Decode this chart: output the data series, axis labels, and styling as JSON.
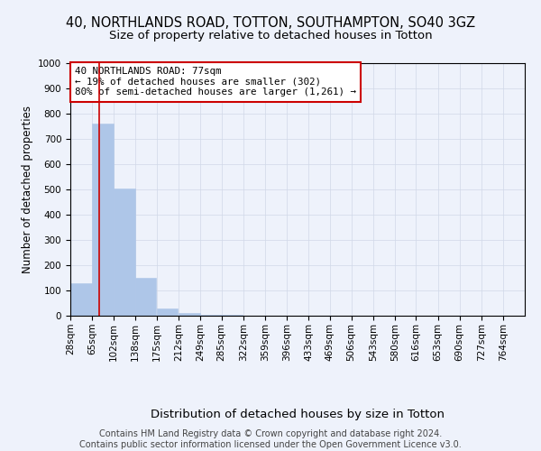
{
  "title_line1": "40, NORTHLANDS ROAD, TOTTON, SOUTHAMPTON, SO40 3GZ",
  "title_line2": "Size of property relative to detached houses in Totton",
  "xlabel": "Distribution of detached houses by size in Totton",
  "ylabel": "Number of detached properties",
  "footer": "Contains HM Land Registry data © Crown copyright and database right 2024.\nContains public sector information licensed under the Open Government Licence v3.0.",
  "bin_labels": [
    "28sqm",
    "65sqm",
    "102sqm",
    "138sqm",
    "175sqm",
    "212sqm",
    "249sqm",
    "285sqm",
    "322sqm",
    "359sqm",
    "396sqm",
    "433sqm",
    "469sqm",
    "506sqm",
    "543sqm",
    "580sqm",
    "616sqm",
    "653sqm",
    "690sqm",
    "727sqm",
    "764sqm"
  ],
  "bin_edges": [
    28,
    65,
    102,
    138,
    175,
    212,
    249,
    285,
    322,
    359,
    396,
    433,
    469,
    506,
    543,
    580,
    616,
    653,
    690,
    727,
    764
  ],
  "bar_heights": [
    128,
    760,
    505,
    150,
    30,
    10,
    4,
    2,
    1,
    0,
    0,
    0,
    0,
    0,
    0,
    0,
    0,
    0,
    0,
    0
  ],
  "bar_color": "#aec6e8",
  "bar_edgecolor": "#aec6e8",
  "grid_color": "#d0d8e8",
  "property_line_x": 77,
  "property_line_color": "#cc0000",
  "annotation_text": "40 NORTHLANDS ROAD: 77sqm\n← 19% of detached houses are smaller (302)\n80% of semi-detached houses are larger (1,261) →",
  "annotation_box_edgecolor": "#cc0000",
  "annotation_box_facecolor": "#ffffff",
  "ylim": [
    0,
    1000
  ],
  "yticks": [
    0,
    100,
    200,
    300,
    400,
    500,
    600,
    700,
    800,
    900,
    1000
  ],
  "background_color": "#eef2fb",
  "plot_background": "#eef2fb",
  "title1_fontsize": 10.5,
  "title2_fontsize": 9.5,
  "ylabel_fontsize": 8.5,
  "xlabel_fontsize": 9.5,
  "tick_fontsize": 7.5,
  "annotation_fontsize": 7.8,
  "footer_fontsize": 7.0
}
